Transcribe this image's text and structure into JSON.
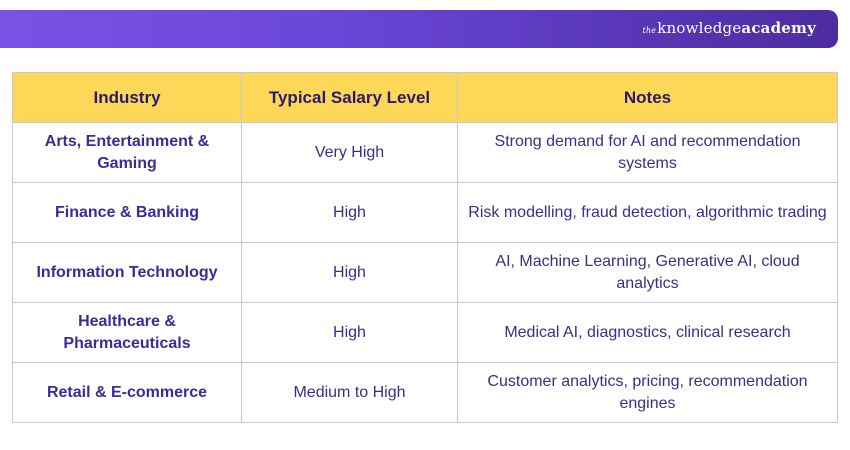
{
  "brand": {
    "prefix": "the",
    "name_regular": "knowledge",
    "name_bold": "academy"
  },
  "table": {
    "headers": [
      "Industry",
      "Typical Salary Level",
      "Notes"
    ],
    "rows": [
      {
        "industry": "Arts, Entertainment & Gaming",
        "salary": "Very High",
        "notes": "Strong demand for AI and recommendation systems"
      },
      {
        "industry": "Finance & Banking",
        "salary": "High",
        "notes": "Risk modelling, fraud detection, algorithmic trading"
      },
      {
        "industry": "Information Technology",
        "salary": "High",
        "notes": "AI, Machine Learning, Generative AI, cloud analytics"
      },
      {
        "industry": "Healthcare & Pharmaceuticals",
        "salary": "High",
        "notes": "Medical AI, diagnostics, clinical research"
      },
      {
        "industry": "Retail & E-commerce",
        "salary": "Medium to High",
        "notes": "Customer analytics, pricing, recommendation engines"
      }
    ]
  },
  "colors": {
    "banner_start": "#7a52e6",
    "banner_end": "#4d2ca0",
    "header_bg": "#fdd858",
    "text": "#3a2e8a"
  }
}
